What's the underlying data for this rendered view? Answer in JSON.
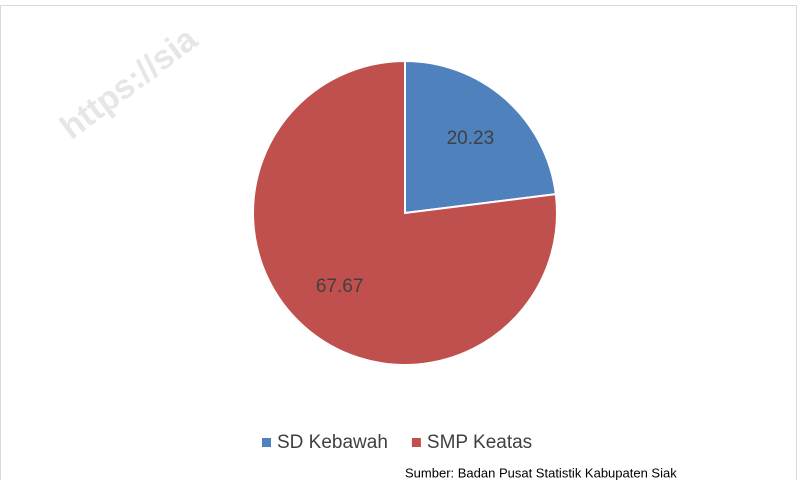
{
  "chart_data": {
    "type": "pie",
    "categories": [
      "SD Kebawah",
      "SMP Keatas"
    ],
    "values": [
      20.23,
      67.67
    ],
    "colors": [
      "#4f81bd",
      "#c0504d"
    ],
    "legend": "bottom",
    "source": "Sumber: Badan Pusat Statistik Kabupaten Siak",
    "watermark": "https://sia"
  }
}
